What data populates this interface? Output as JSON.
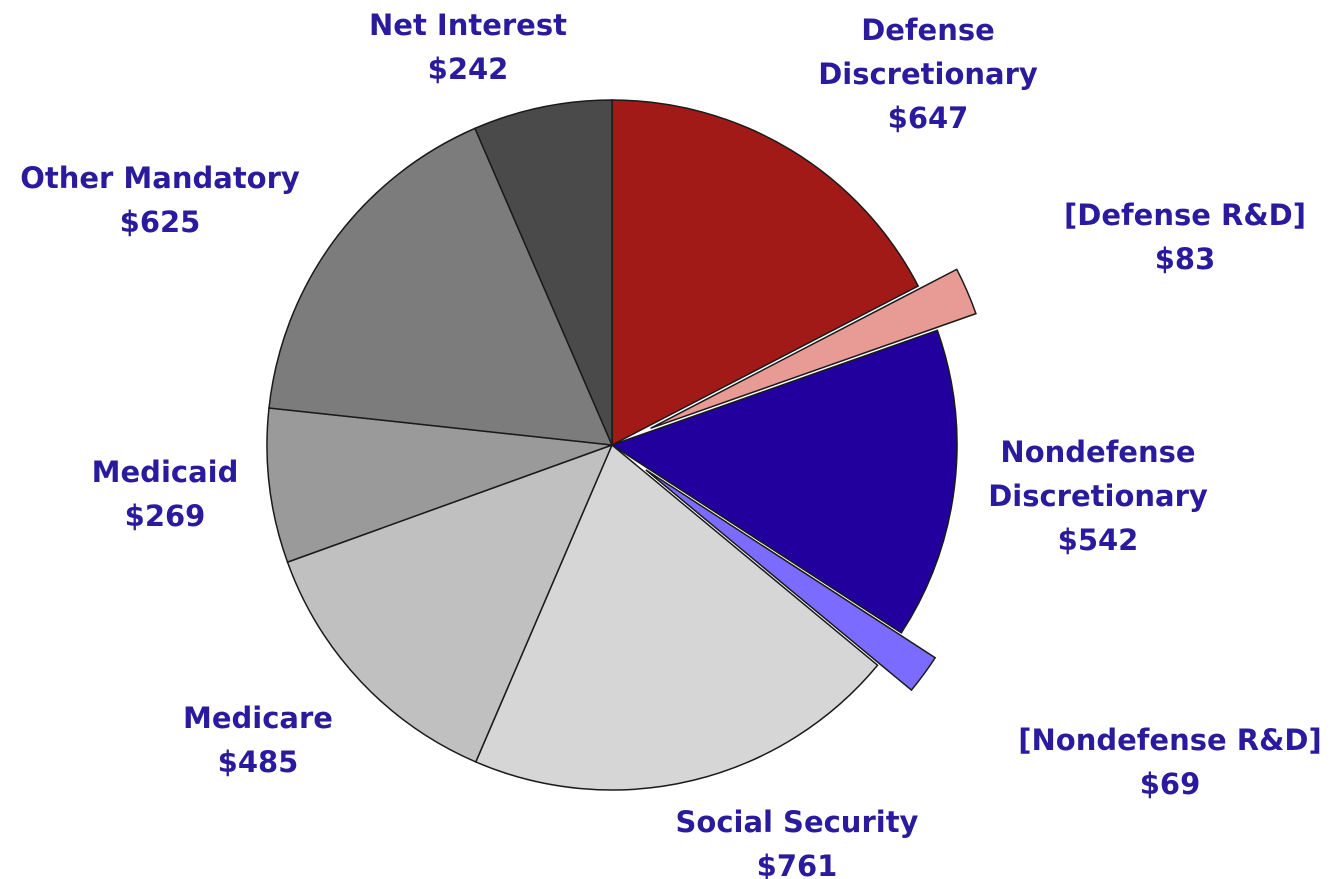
{
  "chart_data": {
    "type": "pie",
    "title": "",
    "units": "$",
    "slices": [
      {
        "name": "Defense Discretionary",
        "lines": [
          "Defense",
          "Discretionary",
          "$647"
        ],
        "value": 647,
        "color": "#a11a17",
        "exploded": false
      },
      {
        "name": "[Defense R&D]",
        "lines": [
          "[Defense R&D]",
          "$83"
        ],
        "value": 83,
        "color": "#e89a94",
        "exploded": true
      },
      {
        "name": "Nondefense Discretionary",
        "lines": [
          "Nondefense",
          "Discretionary",
          "$542"
        ],
        "value": 542,
        "color": "#22009e",
        "exploded": false
      },
      {
        "name": "[Nondefense R&D]",
        "lines": [
          "[Nondefense R&D]",
          "$69"
        ],
        "value": 69,
        "color": "#7b6cff",
        "exploded": true
      },
      {
        "name": "Social Security",
        "lines": [
          "Social Security",
          "$761"
        ],
        "value": 761,
        "color": "#d6d6d6",
        "exploded": false
      },
      {
        "name": "Medicare",
        "lines": [
          "Medicare",
          "$485"
        ],
        "value": 485,
        "color": "#c0c0c0",
        "exploded": false
      },
      {
        "name": "Medicaid",
        "lines": [
          "Medicaid",
          "$269"
        ],
        "value": 269,
        "color": "#9a9a9a",
        "exploded": false
      },
      {
        "name": "Other Mandatory",
        "lines": [
          "Other Mandatory",
          "$625"
        ],
        "value": 625,
        "color": "#7c7c7c",
        "exploded": false
      },
      {
        "name": "Net Interest",
        "lines": [
          "Net Interest",
          "$242"
        ],
        "value": 242,
        "color": "#4a4a4a",
        "exploded": false
      }
    ]
  }
}
